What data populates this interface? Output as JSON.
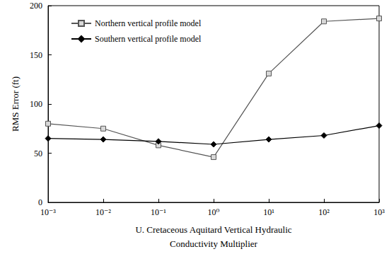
{
  "chart_data": {
    "type": "line",
    "x_label": "U. Cretaceous Aquitard Vertical Hydraulic\nConductivity Multiplier",
    "y_label": "RMS Error (ft)",
    "x": [
      0.001,
      0.01,
      0.1,
      1,
      10,
      100,
      1000
    ],
    "series": [
      {
        "name": "Northern vertical profile model",
        "color": "#555555",
        "marker": "square",
        "values": [
          80,
          75,
          58,
          46,
          131,
          184,
          187
        ]
      },
      {
        "name": "Southern vertical profile model",
        "color": "#000000",
        "marker": "diamond",
        "values": [
          65,
          64,
          62,
          59,
          64,
          68,
          78
        ]
      }
    ],
    "log": "x",
    "xlim": [
      0.001,
      1000
    ],
    "xticks": [
      {
        "value": 0.001,
        "label": "10⁻³"
      },
      {
        "value": 0.01,
        "label": "10⁻²"
      },
      {
        "value": 0.1,
        "label": "10⁻¹"
      },
      {
        "value": 1,
        "label": "10⁰"
      },
      {
        "value": 10,
        "label": "10¹"
      },
      {
        "value": 100,
        "label": "10²"
      },
      {
        "value": 1000,
        "label": "10³"
      }
    ],
    "ylim": [
      0,
      200
    ],
    "yticks": [
      0,
      50,
      100,
      150,
      200
    ],
    "grid": false,
    "legend": "upper left"
  }
}
